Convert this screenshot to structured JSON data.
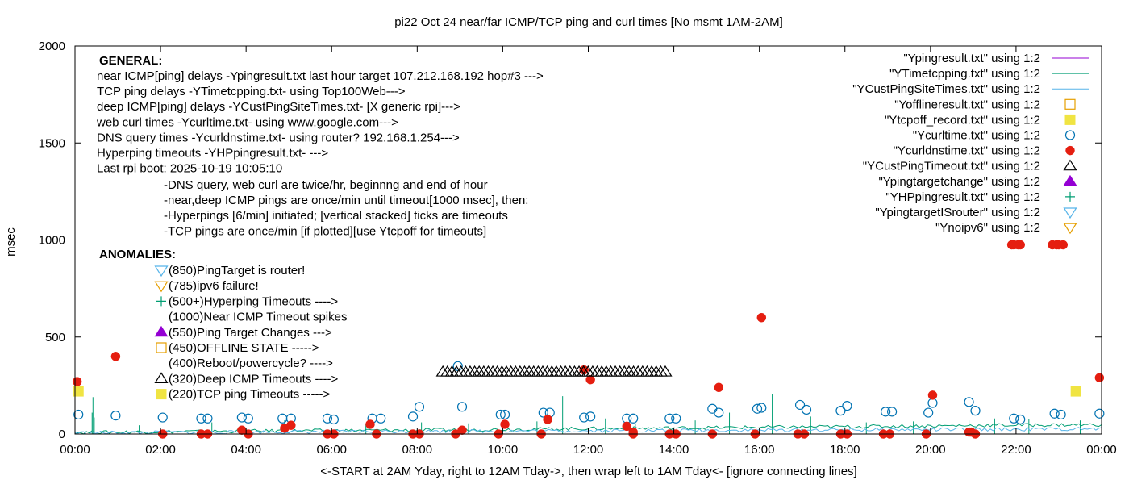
{
  "chart_data": {
    "type": "scatter",
    "title": "pi22 Oct 24  near/far ICMP/TCP ping and curl times [No msmt 1AM-2AM]",
    "xlabel": "<-START at 2AM Yday, right to 12AM Tday->, then wrap left to 1AM Tday<- [ignore connecting lines]",
    "ylabel": "msec",
    "xlim": [
      0,
      24
    ],
    "ylim": [
      0,
      2000
    ],
    "x_unit": "hours",
    "x_ticks": [
      {
        "v": 0,
        "label": "00:00"
      },
      {
        "v": 2,
        "label": "02:00"
      },
      {
        "v": 4,
        "label": "04:00"
      },
      {
        "v": 6,
        "label": "06:00"
      },
      {
        "v": 8,
        "label": "08:00"
      },
      {
        "v": 10,
        "label": "10:00"
      },
      {
        "v": 12,
        "label": "12:00"
      },
      {
        "v": 14,
        "label": "14:00"
      },
      {
        "v": 16,
        "label": "16:00"
      },
      {
        "v": 18,
        "label": "18:00"
      },
      {
        "v": 20,
        "label": "20:00"
      },
      {
        "v": 22,
        "label": "22:00"
      },
      {
        "v": 24,
        "label": "00:00"
      }
    ],
    "y_ticks": [
      {
        "v": 0,
        "label": "0"
      },
      {
        "v": 500,
        "label": "500"
      },
      {
        "v": 1000,
        "label": "1000"
      },
      {
        "v": 1500,
        "label": "1500"
      },
      {
        "v": 2000,
        "label": "2000"
      }
    ],
    "grid": false,
    "legend_position": "top-right",
    "series": [
      {
        "name": "\"Ypingresult.txt\" using 1:2",
        "style": "line",
        "color": "#9400d3",
        "x": [
          0,
          24
        ],
        "y": [
          0,
          0
        ]
      },
      {
        "name": "\"YTimetcpping.txt\" using 1:2",
        "style": "line",
        "color": "#009e73",
        "x": [
          0,
          1,
          2,
          4,
          6,
          8,
          10,
          12,
          14,
          16,
          18,
          20,
          22,
          24
        ],
        "y": [
          8,
          10,
          12,
          15,
          18,
          20,
          24,
          28,
          31,
          35,
          38,
          42,
          46,
          48
        ],
        "spikes": [
          {
            "x": 0.45,
            "y": 85
          },
          {
            "x": 0.4,
            "y": 110
          },
          {
            "x": 0.42,
            "y": 190
          },
          {
            "x": 1.5,
            "y": 45
          },
          {
            "x": 3.2,
            "y": 60
          },
          {
            "x": 4.9,
            "y": 70
          },
          {
            "x": 6.8,
            "y": 50
          },
          {
            "x": 8.1,
            "y": 60
          },
          {
            "x": 9.2,
            "y": 55
          },
          {
            "x": 10.8,
            "y": 65
          },
          {
            "x": 11.4,
            "y": 195
          },
          {
            "x": 12.4,
            "y": 80
          },
          {
            "x": 13.1,
            "y": 55
          },
          {
            "x": 14.5,
            "y": 70
          },
          {
            "x": 15.3,
            "y": 110
          },
          {
            "x": 16.3,
            "y": 205
          },
          {
            "x": 17.2,
            "y": 90
          },
          {
            "x": 18.5,
            "y": 60
          },
          {
            "x": 19.6,
            "y": 65
          },
          {
            "x": 20.9,
            "y": 70
          },
          {
            "x": 21.5,
            "y": 80
          },
          {
            "x": 22.3,
            "y": 75
          },
          {
            "x": 23.5,
            "y": 70
          }
        ]
      },
      {
        "name": "\"YCustPingSiteTimes.txt\" using 1:2",
        "style": "line",
        "color": "#56b4e9",
        "x": [
          0,
          2,
          4,
          6,
          8,
          10,
          12,
          14,
          16,
          18,
          20,
          22,
          24
        ],
        "y": [
          6,
          8,
          10,
          12,
          14,
          15,
          17,
          18,
          20,
          21,
          23,
          24,
          26
        ]
      },
      {
        "name": "\"Yofflineresult.txt\" using 1:2",
        "style": "open-square",
        "color": "#e69f00",
        "x": [],
        "y": []
      },
      {
        "name": "\"Ytcpoff_record.txt\" using 1:2",
        "style": "filled-square",
        "color": "#f0e442",
        "x": [
          0.08,
          23.4
        ],
        "y": [
          220,
          220
        ]
      },
      {
        "name": "\"Ycurltime.txt\" using 1:2",
        "style": "open-circle",
        "color": "#0072b2",
        "x": [
          0.08,
          0.95,
          2.05,
          2.95,
          3.1,
          3.9,
          4.05,
          4.85,
          5.05,
          5.9,
          6.05,
          6.95,
          7.15,
          7.9,
          8.05,
          8.95,
          9.05,
          9.95,
          10.05,
          10.95,
          11.1,
          11.9,
          12.05,
          12.9,
          13.05,
          13.9,
          14.05,
          14.9,
          15.05,
          15.95,
          16.05,
          16.95,
          17.1,
          17.9,
          18.05,
          18.95,
          19.1,
          19.95,
          20.05,
          20.9,
          21.05,
          21.95,
          22.1,
          22.9,
          23.05,
          23.95
        ],
        "y": [
          100,
          95,
          85,
          80,
          80,
          85,
          80,
          80,
          80,
          80,
          75,
          80,
          80,
          90,
          140,
          350,
          140,
          100,
          100,
          110,
          110,
          85,
          90,
          80,
          80,
          80,
          80,
          130,
          110,
          130,
          135,
          150,
          125,
          120,
          145,
          115,
          115,
          110,
          160,
          165,
          120,
          80,
          75,
          105,
          100,
          105
        ]
      },
      {
        "name": "\"Ycurldnstime.txt\" using 1:2",
        "style": "filled-circle",
        "color": "#e51e10",
        "x": [
          0.05,
          0.95,
          2.05,
          2.95,
          3.1,
          3.9,
          4.05,
          4.9,
          5.05,
          5.9,
          6.05,
          6.9,
          7.05,
          7.9,
          8.05,
          8.9,
          9.05,
          9.9,
          10.05,
          10.9,
          11.05,
          11.9,
          12.05,
          12.9,
          13.05,
          13.9,
          14.05,
          14.9,
          15.05,
          15.9,
          16.05,
          16.9,
          17.05,
          17.9,
          18.05,
          18.9,
          19.05,
          19.9,
          20.05,
          20.9,
          21.05,
          21.9,
          22.05,
          22.95,
          23.1,
          23.95
        ],
        "y": [
          270,
          400,
          0,
          0,
          0,
          20,
          0,
          30,
          45,
          0,
          0,
          50,
          0,
          0,
          0,
          0,
          20,
          0,
          50,
          0,
          75,
          330,
          280,
          40,
          0,
          0,
          0,
          0,
          240,
          0,
          600,
          0,
          0,
          0,
          0,
          0,
          0,
          0,
          200,
          10,
          0,
          975,
          975,
          975,
          975,
          290
        ],
        "extra": [
          {
            "x": 21.95,
            "y": 975
          },
          {
            "x": 22.1,
            "y": 975
          },
          {
            "x": 22.85,
            "y": 975
          },
          {
            "x": 23.0,
            "y": 975
          },
          {
            "x": 13.05,
            "y": 10
          },
          {
            "x": 20.95,
            "y": 10
          }
        ]
      },
      {
        "name": "\"YCustPingTimeout.txt\" using 1:2",
        "style": "open-triangle",
        "color": "#000000",
        "x_range": [
          8.6,
          13.8
        ],
        "y": 320,
        "count": 50
      },
      {
        "name": "\"Ypingtargetchange\" using 1:2",
        "style": "filled-triangle",
        "color": "#9400d3",
        "x": [],
        "y": []
      },
      {
        "name": "\"YHPpingresult.txt\" using 1:2",
        "style": "plus",
        "color": "#009e73",
        "x": [],
        "y": []
      },
      {
        "name": "\"YpingtargetISrouter\" using 1:2",
        "style": "open-triangle-down",
        "color": "#56b4e9",
        "x": [],
        "y": []
      },
      {
        "name": "\"Ynoipv6\" using 1:2",
        "style": "open-triangle-down",
        "color": "#e69f00",
        "x": [],
        "y": []
      }
    ],
    "annotations": {
      "general_heading": "GENERAL:",
      "general_lines": [
        "near ICMP[ping] delays -Ypingresult.txt last hour target 107.212.168.192 hop#3 --->",
        "TCP ping delays -YTimetcpping.txt- using Top100Web--->",
        "deep ICMP[ping] delays -YCustPingSiteTimes.txt- [X generic rpi]--->",
        "web curl times -Ycurltime.txt- using www.google.com--->",
        "DNS query times -Ycurldnstime.txt- using router? 192.168.1.254--->",
        "Hyperping timeouts -YHPpingresult.txt- --->",
        "Last rpi boot: 2025-10-19 10:05:10"
      ],
      "indented_lines": [
        "-DNS query, web curl are twice/hr, beginnng and end of hour",
        "-near,deep ICMP pings are once/min until timeout[1000 msec], then:",
        "  -Hyperpings [6/min] initiated; [vertical stacked] ticks are timeouts",
        "-TCP pings are once/min [if plotted][use Ytcpoff for timeouts]"
      ],
      "anomalies_heading": "ANOMALIES:",
      "anomalies": [
        {
          "symbol": "open-triangle-down",
          "color": "#56b4e9",
          "text": "(850)PingTarget is router!"
        },
        {
          "symbol": "open-triangle-down",
          "color": "#e69f00",
          "text": "(785)ipv6 failure!"
        },
        {
          "symbol": "plus",
          "color": "#009e73",
          "text": "(500+)Hyperping Timeouts ---->"
        },
        {
          "symbol": "none",
          "color": "#000000",
          "text": "(1000)Near ICMP Timeout spikes"
        },
        {
          "symbol": "filled-triangle",
          "color": "#9400d3",
          "text": "(550)Ping Target Changes --->"
        },
        {
          "symbol": "open-square",
          "color": "#e69f00",
          "text": "(450)OFFLINE STATE ----->"
        },
        {
          "symbol": "none",
          "color": "#000000",
          "text": "(400)Reboot/powercycle? ---->"
        },
        {
          "symbol": "open-triangle",
          "color": "#000000",
          "text": "(320)Deep ICMP Timeouts ---->"
        },
        {
          "symbol": "filled-square",
          "color": "#f0e442",
          "text": "(220)TCP ping Timeouts ----->"
        }
      ]
    }
  }
}
